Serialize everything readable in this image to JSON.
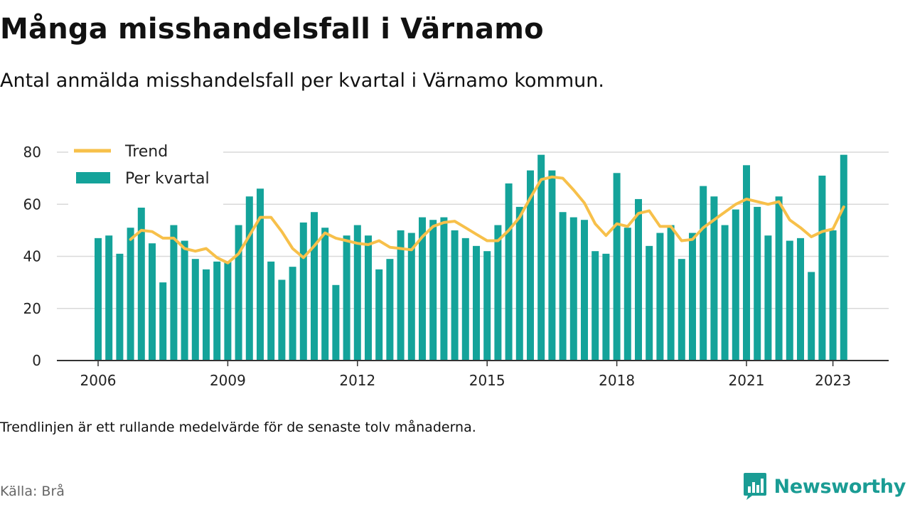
{
  "header": {
    "title": "Många misshandelsfall i Värnamo",
    "subtitle": "Antal anmälda misshandelsfall per kvartal i Värnamo kommun."
  },
  "footer": {
    "note": "Trendlinjen är ett rullande medelvärde för de senaste tolv månaderna.",
    "source": "Källa: Brå",
    "brand": "Newsworthy",
    "brand_icon": "bar-chart-speech-bubble-icon"
  },
  "colors": {
    "bars": "#14a39a",
    "trend": "#f7c04a",
    "grid": "#d9d9d9",
    "axis": "#333333",
    "brand": "#1a9c94"
  },
  "chart_data": {
    "type": "bar",
    "x_unit": "quarter",
    "start": "2006-Q1",
    "end": "2023-Q2",
    "ylim": [
      0,
      80
    ],
    "yticks": [
      0,
      20,
      40,
      60,
      80
    ],
    "xtick_labels": [
      "2006",
      "2009",
      "2012",
      "2015",
      "2018",
      "2021",
      "2023"
    ],
    "grid": true,
    "legend_position": "top-left",
    "series": [
      {
        "name": "Per kvartal",
        "type": "bar",
        "values": [
          47,
          48,
          41,
          51,
          60,
          45,
          30,
          52,
          46,
          39,
          35,
          38,
          38,
          52,
          63,
          66,
          38,
          31,
          36,
          53,
          57,
          51,
          29,
          48,
          52,
          48,
          35,
          39,
          50,
          49,
          55,
          54,
          55,
          50,
          47,
          44,
          42,
          52,
          68,
          59,
          73,
          79,
          73,
          57,
          55,
          54,
          42,
          41,
          72,
          51,
          62,
          44,
          49,
          52,
          39,
          49,
          67,
          63,
          52,
          58,
          75,
          59,
          48,
          63,
          46,
          47,
          34,
          71,
          50,
          79
        ]
      },
      {
        "name": "Trend",
        "type": "line",
        "start": "2006-Q4",
        "values": [
          46.5,
          50,
          49.5,
          47,
          47,
          43,
          42,
          43,
          39.5,
          37.5,
          41,
          48,
          55,
          55,
          49.5,
          43,
          39.5,
          44,
          49,
          47,
          46,
          45,
          44.5,
          46,
          43.5,
          43,
          42.5,
          47.5,
          51.5,
          53,
          53.5,
          51,
          48.5,
          46,
          46,
          50,
          55,
          62.5,
          69.5,
          70.5,
          70,
          65.5,
          60.5,
          52.5,
          48,
          52.5,
          51.5,
          56.5,
          57.5,
          51.5,
          51.5,
          46,
          46.5,
          51,
          54,
          57,
          60,
          62,
          61,
          60,
          61,
          54,
          51,
          47.5,
          49.5,
          50.5,
          59
        ]
      }
    ]
  }
}
